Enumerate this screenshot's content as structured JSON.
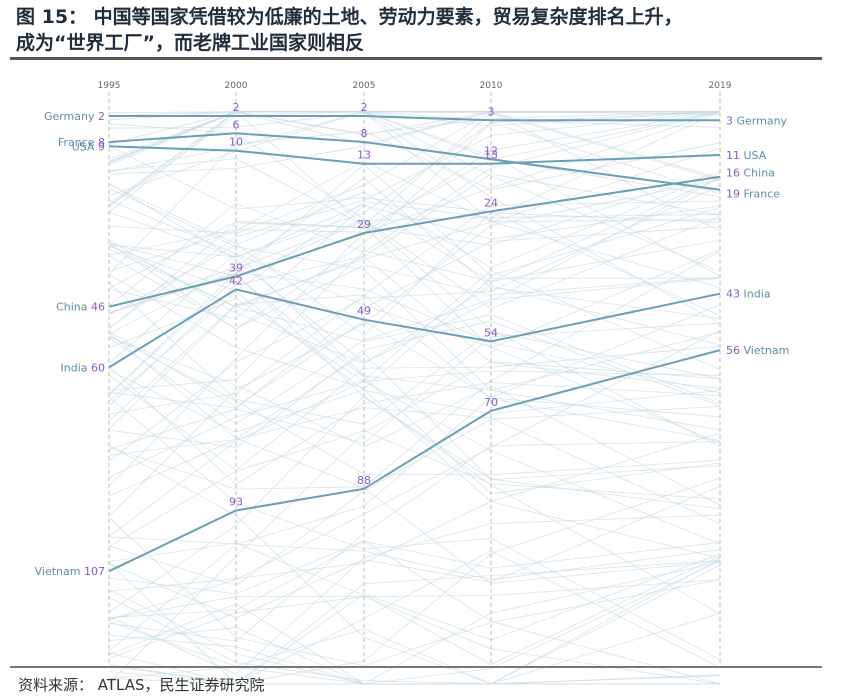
{
  "figure": {
    "title_line1": "图 15：  中国等国家凭借较为低廉的土地、劳动力要素，贸易复杂度排名上升，",
    "title_line2": "成为“世界工厂”，而老牌工业国家则相反",
    "source": "资料来源：  ATLAS，民生证券研究院"
  },
  "colors": {
    "series_line": "#6a9fb5",
    "background_line": "#c8dbe4",
    "rank_number": "#8b5cc7",
    "country_label": "#5a8fa8",
    "axis_dash": "#bdbdbd"
  },
  "chart_data": {
    "type": "line",
    "note_type": "bump chart of rankings (lower number = higher rank)",
    "x": [
      "1995",
      "2000",
      "2005",
      "2010",
      "2019"
    ],
    "y_inverted": true,
    "ylim": [
      1,
      133
    ],
    "grid": false,
    "series": [
      {
        "name": "Germany",
        "values": [
          2,
          2,
          2,
          3,
          3
        ]
      },
      {
        "name": "France",
        "values": [
          8,
          6,
          8,
          12,
          19
        ]
      },
      {
        "name": "USA",
        "values": [
          9,
          10,
          13,
          13,
          11
        ]
      },
      {
        "name": "China",
        "values": [
          46,
          39,
          29,
          24,
          16
        ]
      },
      {
        "name": "India",
        "values": [
          60,
          42,
          49,
          54,
          43
        ]
      },
      {
        "name": "Vietnam",
        "values": [
          107,
          93,
          88,
          70,
          56
        ]
      }
    ],
    "left_labels": [
      "Germany 2",
      "France 8",
      "USA 9",
      "China 46",
      "India 60",
      "Vietnam 107"
    ],
    "right_labels": [
      "3 Germany",
      "11 USA",
      "16 China",
      "19 France",
      "43 India",
      "56 Vietnam"
    ]
  }
}
